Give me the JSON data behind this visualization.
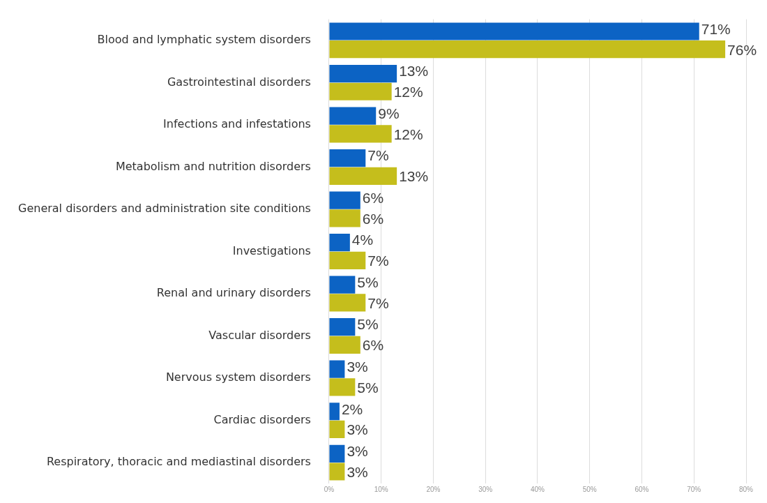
{
  "chart_data": {
    "type": "bar",
    "orientation": "horizontal",
    "categories": [
      "Blood and lymphatic system disorders",
      "Gastrointestinal disorders",
      "Infections and infestations",
      "Metabolism and nutrition disorders",
      "General disorders and administration site conditions",
      "Investigations",
      "Renal and urinary disorders",
      "Vascular disorders",
      "Nervous system disorders",
      "Cardiac disorders",
      "Respiratory, thoracic and mediastinal disorders"
    ],
    "series": [
      {
        "color": "#0c63c4",
        "values": [
          71,
          13,
          9,
          7,
          6,
          4,
          5,
          5,
          3,
          2,
          3
        ],
        "value_labels": [
          "71%",
          "13%",
          "9%",
          "7%",
          "6%",
          "4%",
          "5%",
          "5%",
          "3%",
          "2%",
          "3%"
        ]
      },
      {
        "color": "#c5be1c",
        "values": [
          76,
          12,
          12,
          13,
          6,
          7,
          7,
          6,
          5,
          3,
          3
        ],
        "value_labels": [
          "76%",
          "12%",
          "12%",
          "13%",
          "6%",
          "7%",
          "7%",
          "6%",
          "5%",
          "3%",
          "3%"
        ]
      }
    ],
    "xlim": [
      0,
      80
    ],
    "xticks": [
      {
        "value": 0,
        "label": "0%"
      },
      {
        "value": 10,
        "label": "10%"
      },
      {
        "value": 20,
        "label": "20%"
      },
      {
        "value": 30,
        "label": "30%"
      },
      {
        "value": 40,
        "label": "40%"
      },
      {
        "value": 50,
        "label": "50%"
      },
      {
        "value": 60,
        "label": "60%"
      },
      {
        "value": 70,
        "label": "70%"
      },
      {
        "value": 80,
        "label": "80%"
      }
    ],
    "grid": "x",
    "legend": false
  }
}
